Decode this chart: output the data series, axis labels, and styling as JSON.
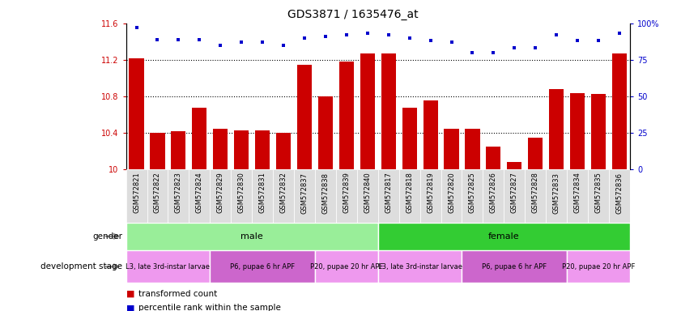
{
  "title": "GDS3871 / 1635476_at",
  "samples": [
    "GSM572821",
    "GSM572822",
    "GSM572823",
    "GSM572824",
    "GSM572829",
    "GSM572830",
    "GSM572831",
    "GSM572832",
    "GSM572837",
    "GSM572838",
    "GSM572839",
    "GSM572840",
    "GSM572817",
    "GSM572818",
    "GSM572819",
    "GSM572820",
    "GSM572825",
    "GSM572826",
    "GSM572827",
    "GSM572828",
    "GSM572833",
    "GSM572834",
    "GSM572835",
    "GSM572836"
  ],
  "bar_values": [
    11.22,
    10.4,
    10.42,
    10.68,
    10.45,
    10.43,
    10.43,
    10.4,
    11.15,
    10.8,
    11.18,
    11.27,
    11.27,
    10.68,
    10.76,
    10.45,
    10.45,
    10.25,
    10.08,
    10.35,
    10.88,
    10.84,
    10.83,
    11.27
  ],
  "percentile_values": [
    97,
    89,
    89,
    89,
    85,
    87,
    87,
    85,
    90,
    91,
    92,
    93,
    92,
    90,
    88,
    87,
    80,
    80,
    83,
    83,
    92,
    88,
    88,
    93
  ],
  "bar_color": "#cc0000",
  "dot_color": "#0000cc",
  "ylim_left": [
    10.0,
    11.6
  ],
  "ylim_right": [
    0,
    100
  ],
  "yticks_left": [
    10.0,
    10.4,
    10.8,
    11.2,
    11.6
  ],
  "yticks_right": [
    0,
    25,
    50,
    75,
    100
  ],
  "ytick_labels_left": [
    "10",
    "10.4",
    "10.8",
    "11.2",
    "11.6"
  ],
  "ytick_labels_right": [
    "0",
    "25",
    "50",
    "75",
    "100%"
  ],
  "gender_labels": [
    {
      "label": "male",
      "start": 0,
      "end": 11,
      "color": "#99ee99"
    },
    {
      "label": "female",
      "start": 12,
      "end": 23,
      "color": "#33cc33"
    }
  ],
  "dev_stage_labels": [
    {
      "label": "L3, late 3rd-instar larvae",
      "start": 0,
      "end": 3,
      "color": "#ee99ee"
    },
    {
      "label": "P6, pupae 6 hr APF",
      "start": 4,
      "end": 8,
      "color": "#cc66cc"
    },
    {
      "label": "P20, pupae 20 hr APF",
      "start": 9,
      "end": 11,
      "color": "#ee99ee"
    },
    {
      "label": "L3, late 3rd-instar larvae",
      "start": 12,
      "end": 15,
      "color": "#ee99ee"
    },
    {
      "label": "P6, pupae 6 hr APF",
      "start": 16,
      "end": 20,
      "color": "#cc66cc"
    },
    {
      "label": "P20, pupae 20 hr APF",
      "start": 21,
      "end": 23,
      "color": "#ee99ee"
    }
  ],
  "legend_items": [
    {
      "label": "transformed count",
      "color": "#cc0000"
    },
    {
      "label": "percentile rank within the sample",
      "color": "#0000cc"
    }
  ],
  "background_color": "#ffffff",
  "title_fontsize": 10,
  "tick_fontsize": 7,
  "sample_label_fontsize": 6,
  "row_label_fontsize": 7.5,
  "dev_stage_fontsize": 6,
  "gender_fontsize": 8,
  "legend_fontsize": 7.5,
  "arrow_color": "#888888",
  "xticklabel_bg": "#dddddd"
}
